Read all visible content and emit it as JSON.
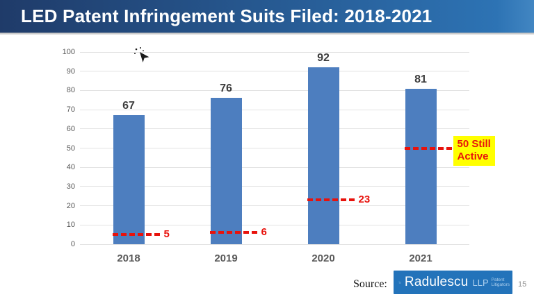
{
  "title_bar": {
    "title": "LED Patent Infringement Suits Filed: 2018-2021",
    "bg_left": "#1f3b69",
    "bg_right": "#2d73b4"
  },
  "chart_data": {
    "type": "bar",
    "title": "LED Patent Infringement Suits Filed: 2018-2021",
    "xlabel": "",
    "ylabel": "",
    "categories": [
      "2018",
      "2019",
      "2020",
      "2021"
    ],
    "values": [
      67,
      76,
      92,
      81
    ],
    "ylim": [
      0,
      100
    ],
    "ytick_step": 10,
    "grid": true,
    "legend": "none",
    "bar_color": "#4d7ebf",
    "annotation_color": "#e8120c",
    "highlight_bg": "#ffff00",
    "annotations": [
      {
        "category": "2018",
        "value": 5,
        "label": "5",
        "style": "text"
      },
      {
        "category": "2019",
        "value": 6,
        "label": "6",
        "style": "text"
      },
      {
        "category": "2020",
        "value": 23,
        "label": "23",
        "style": "text"
      },
      {
        "category": "2021",
        "value": 50,
        "label": "50 Still Active",
        "style": "highlight-box"
      }
    ]
  },
  "source": {
    "label": "Source:",
    "logo": {
      "name": "Radulescu",
      "suffix": "LLP",
      "tagline": "Patent Litigators",
      "bg": "#2373ba"
    }
  },
  "page_number": "15",
  "icons": {
    "cursor": "arrow-cursor-icon",
    "logo_mark": "dot-grid-logo-icon"
  }
}
